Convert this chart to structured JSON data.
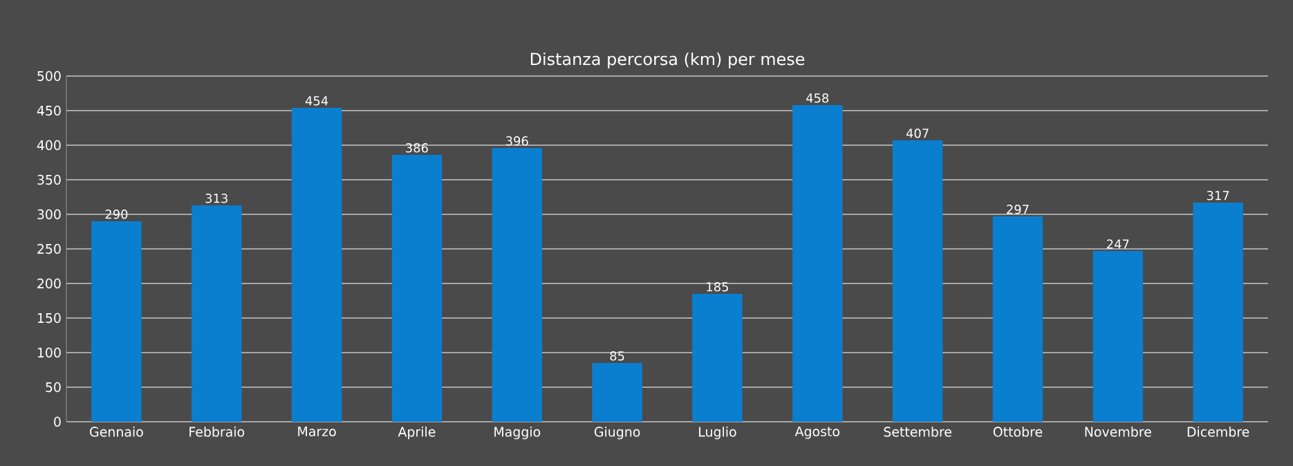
{
  "chart_data": {
    "type": "bar",
    "title": "Distanza percorsa (km) per mese",
    "categories": [
      "Gennaio",
      "Febbraio",
      "Marzo",
      "Aprile",
      "Maggio",
      "Giugno",
      "Luglio",
      "Agosto",
      "Settembre",
      "Ottobre",
      "Novembre",
      "Dicembre"
    ],
    "values": [
      290,
      313,
      454,
      386,
      396,
      85,
      185,
      458,
      407,
      297,
      247,
      317
    ],
    "color": "#0a7fd0",
    "ylim": [
      0,
      500
    ],
    "yticks": [
      0,
      50,
      100,
      150,
      200,
      250,
      300,
      350,
      400,
      450,
      500
    ],
    "grid": "y",
    "data_labels": true
  }
}
